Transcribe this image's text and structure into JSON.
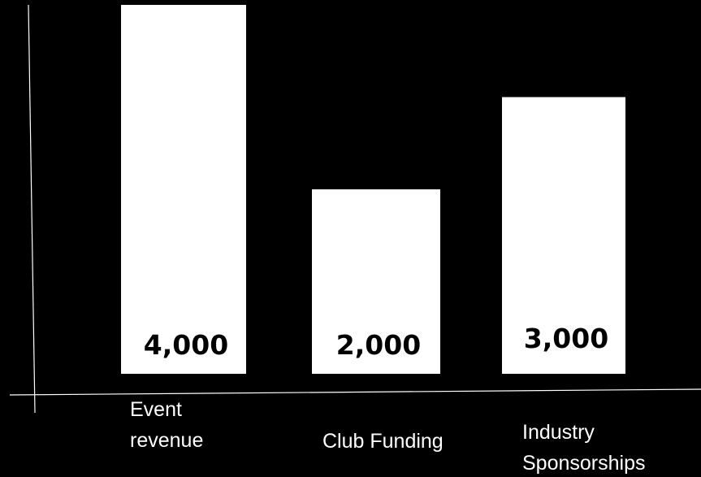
{
  "chart_data": {
    "type": "bar",
    "title": "",
    "xlabel": "",
    "ylabel": "",
    "categories": [
      "Event revenue",
      "Club Funding",
      "Industry Sponsorships"
    ],
    "category_lines": [
      [
        "Event",
        "revenue"
      ],
      [
        "Club Funding"
      ],
      [
        "Industry",
        "Sponsorships"
      ]
    ],
    "values": [
      4000,
      2000,
      3000
    ],
    "value_labels": [
      "4,000",
      "2,000",
      "3,000"
    ],
    "ylim": [
      0,
      4000
    ],
    "grid": false,
    "legend": "none",
    "colors": {
      "background": "#000000",
      "bar": "#ffffff",
      "label_on_bar": "#000000",
      "axis": "#ffffff",
      "text": "#ffffff"
    }
  }
}
